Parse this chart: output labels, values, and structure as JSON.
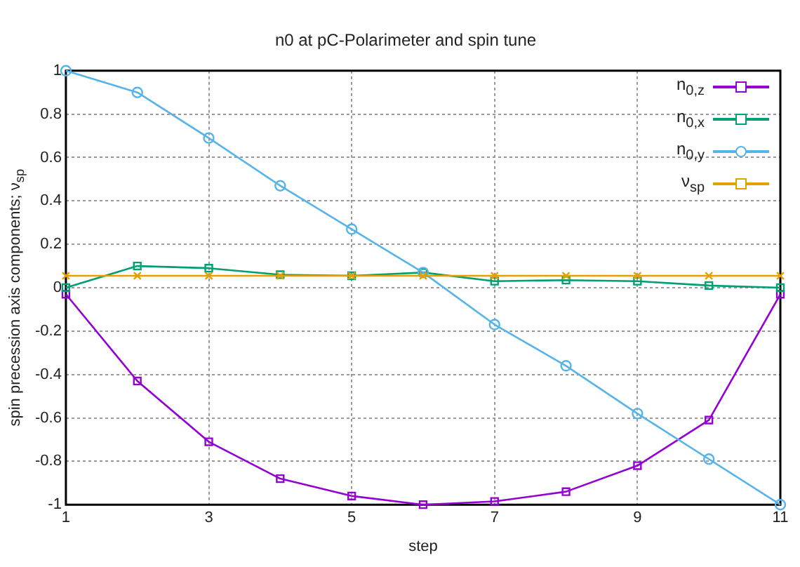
{
  "chart_data": {
    "type": "line",
    "title": "n0 at pC-Polarimeter and spin tune",
    "xlabel": "step",
    "ylabel": "spin precession axis components; ν$_{sp}$",
    "x": [
      1,
      2,
      3,
      4,
      5,
      6,
      7,
      8,
      9,
      10,
      11
    ],
    "xlim": [
      1,
      11
    ],
    "xticks": [
      1,
      3,
      5,
      7,
      9,
      11
    ],
    "ylim": [
      -1,
      1
    ],
    "yticks": [
      -1,
      -0.8,
      -0.6,
      -0.4,
      -0.2,
      0,
      0.2,
      0.4,
      0.6,
      0.8,
      1
    ],
    "grid": true,
    "legend": "top right",
    "series": [
      {
        "name": "n$_{0,z}$",
        "color": "#9400d3",
        "marker": "square",
        "values": [
          -0.03,
          -0.43,
          -0.71,
          -0.88,
          -0.96,
          -1.0,
          -0.985,
          -0.94,
          -0.82,
          -0.61,
          -0.03
        ]
      },
      {
        "name": "n$_{0,x}$",
        "color": "#009e73",
        "marker": "square",
        "values": [
          0,
          0.1,
          0.09,
          0.06,
          0.055,
          0.07,
          0.03,
          0.035,
          0.03,
          0.01,
          0
        ]
      },
      {
        "name": "n$_{0,y}$",
        "color": "#56b4e9",
        "marker": "circle",
        "values": [
          1,
          0.9,
          0.69,
          0.47,
          0.27,
          0.07,
          -0.17,
          -0.36,
          -0.58,
          -0.79,
          -1.0
        ]
      },
      {
        "name": "ν$_{sp}$",
        "color": "#e69f00",
        "marker": "cross",
        "values": [
          0.055,
          0.055,
          0.055,
          0.055,
          0.055,
          0.055,
          0.055,
          0.055,
          0.055,
          0.055,
          0.055
        ]
      }
    ]
  }
}
